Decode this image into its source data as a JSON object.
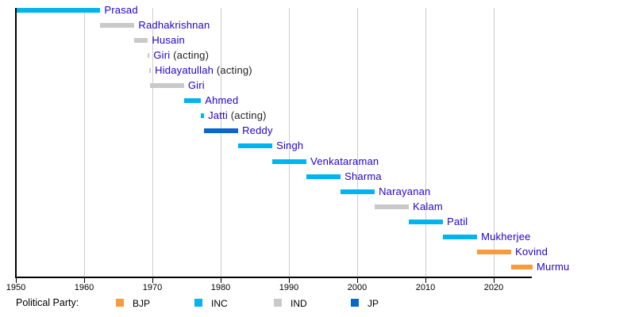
{
  "chart_data": {
    "type": "timeline",
    "x_axis": {
      "unit": "year",
      "range": [
        1950,
        2026
      ],
      "ticks": [
        1950,
        1960,
        1970,
        1980,
        1990,
        2000,
        2010,
        2020
      ],
      "grid": true
    },
    "bars": [
      {
        "name": "Prasad",
        "party": "INC",
        "start": 1950.07,
        "end": 1962.37
      },
      {
        "name": "Radhakrishnan",
        "party": "IND",
        "start": 1962.37,
        "end": 1967.37
      },
      {
        "name": "Husain",
        "party": "IND",
        "start": 1967.37,
        "end": 1969.34
      },
      {
        "name": "Giri",
        "suffix": " (acting)",
        "party": "IND",
        "start": 1969.34,
        "end": 1969.55
      },
      {
        "name": "Hidayatullah",
        "suffix": " (acting)",
        "party": "IND",
        "start": 1969.55,
        "end": 1969.65
      },
      {
        "name": "Giri",
        "party": "IND",
        "start": 1969.65,
        "end": 1974.63
      },
      {
        "name": "Ahmed",
        "party": "INC",
        "start": 1974.63,
        "end": 1977.12
      },
      {
        "name": "Jatti",
        "suffix": " (acting)",
        "party": "INC",
        "start": 1977.12,
        "end": 1977.57
      },
      {
        "name": "Reddy",
        "party": "JP",
        "start": 1977.57,
        "end": 1982.57
      },
      {
        "name": "Singh",
        "party": "INC",
        "start": 1982.57,
        "end": 1987.57
      },
      {
        "name": "Venkataraman",
        "party": "INC",
        "start": 1987.57,
        "end": 1992.57
      },
      {
        "name": "Sharma",
        "party": "INC",
        "start": 1992.57,
        "end": 1997.57
      },
      {
        "name": "Narayanan",
        "party": "INC",
        "start": 1997.57,
        "end": 2002.57
      },
      {
        "name": "Kalam",
        "party": "IND",
        "start": 2002.57,
        "end": 2007.57
      },
      {
        "name": "Patil",
        "party": "INC",
        "start": 2007.57,
        "end": 2012.57
      },
      {
        "name": "Mukherjee",
        "party": "INC",
        "start": 2012.57,
        "end": 2017.57
      },
      {
        "name": "Kovind",
        "party": "BJP",
        "start": 2017.57,
        "end": 2022.57
      },
      {
        "name": "Murmu",
        "party": "BJP",
        "start": 2022.57,
        "end": 2025.7
      }
    ],
    "legend": {
      "label": "Political Party:",
      "entries": [
        {
          "name": "BJP",
          "color": "#F89B3C"
        },
        {
          "name": "INC",
          "color": "#00B4F0"
        },
        {
          "name": "IND",
          "color": "#C9C9C9"
        },
        {
          "name": "JP",
          "color": "#0A66C8"
        }
      ]
    },
    "colors": {
      "bar_label": "#2200CC",
      "acting_suffix": "#222222",
      "axis": "#000000",
      "gridline": "#CCCCCC"
    }
  }
}
